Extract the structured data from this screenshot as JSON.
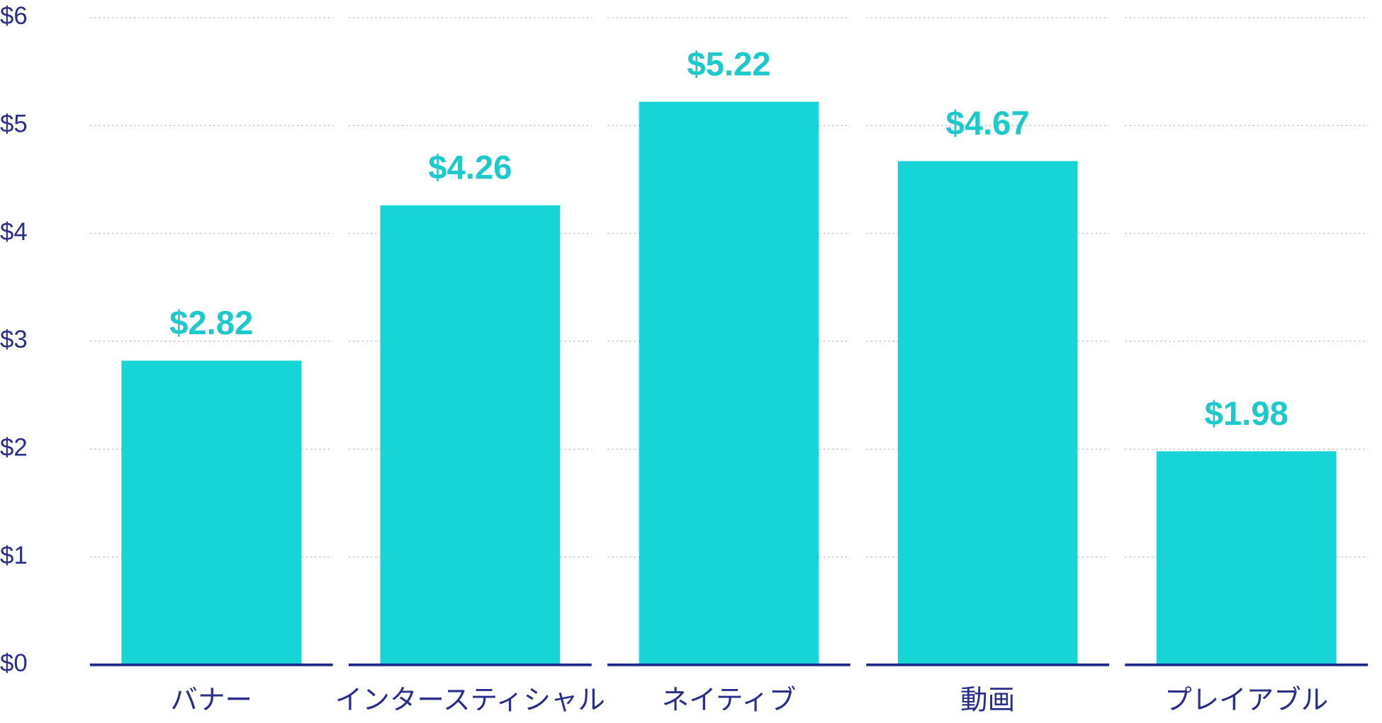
{
  "chart_data": {
    "type": "bar",
    "categories": [
      "バナー",
      "インタースティシャル",
      "ネイティブ",
      "動画",
      "プレイアブル"
    ],
    "values": [
      2.82,
      4.26,
      5.22,
      4.67,
      1.98
    ],
    "value_labels": [
      "$2.82",
      "$4.26",
      "$5.22",
      "$4.67",
      "$1.98"
    ],
    "color": "#17d4d6",
    "ylim": [
      0,
      6
    ],
    "yticks": [
      {
        "value": 0,
        "label": "$0"
      },
      {
        "value": 1,
        "label": "$1"
      },
      {
        "value": 2,
        "label": "$2"
      },
      {
        "value": 3,
        "label": "$3"
      },
      {
        "value": 4,
        "label": "$4"
      },
      {
        "value": 5,
        "label": "$5"
      },
      {
        "value": 6,
        "label": "$6"
      }
    ],
    "grid": true
  }
}
